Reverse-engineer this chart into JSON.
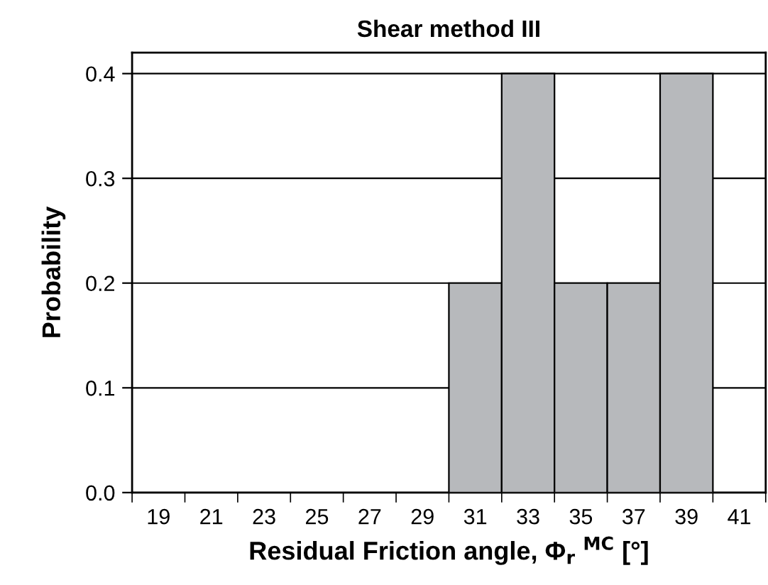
{
  "chart_data": {
    "type": "bar",
    "title": "Shear method III",
    "xlabel": "Residual Friction angle, Φ$_{r}$ $^{MC}$ [°]",
    "ylabel": "Probability",
    "categories": [
      "19",
      "21",
      "23",
      "25",
      "27",
      "29",
      "31",
      "33",
      "35",
      "37",
      "39",
      "41"
    ],
    "values": [
      null,
      null,
      null,
      null,
      null,
      null,
      0.2,
      0.4,
      0.2,
      0.2,
      0.4,
      null
    ],
    "color": "#b7b9bc",
    "ylim": [
      0,
      0.42
    ],
    "yticks": [
      {
        "value": 0,
        "label": "0.0"
      },
      0.1,
      0.2,
      0.3,
      0.4
    ],
    "grid": "y",
    "legend": false
  }
}
